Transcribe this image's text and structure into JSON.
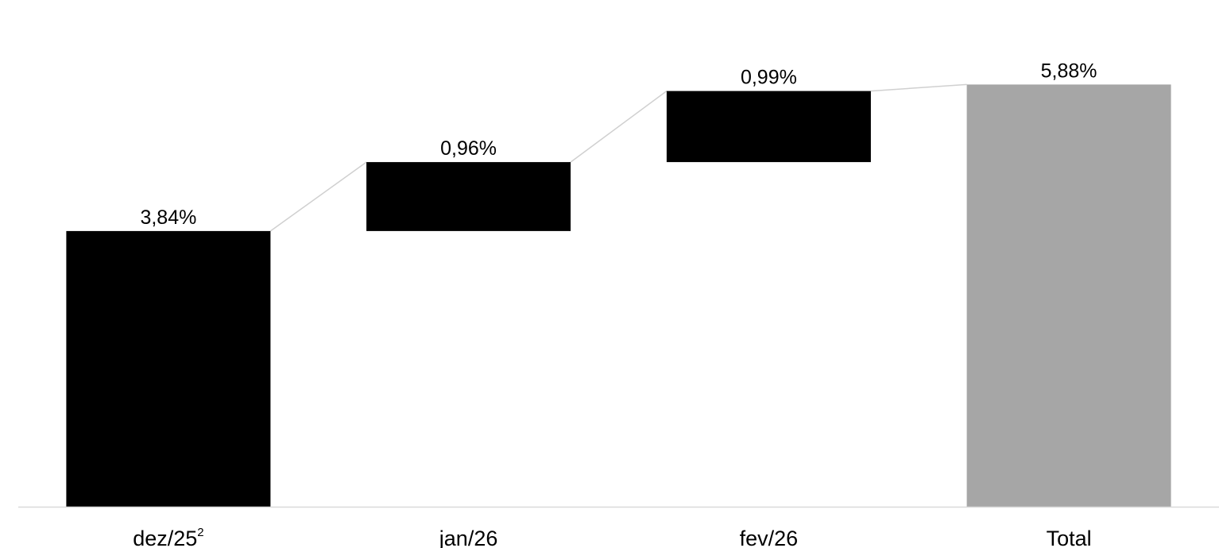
{
  "chart_data": {
    "type": "bar",
    "subtype": "waterfall",
    "title": "",
    "xlabel": "",
    "ylabel": "",
    "categories": [
      "dez/25",
      "jan/26",
      "fev/26",
      "Total"
    ],
    "category_superscripts": [
      "2",
      "",
      "",
      ""
    ],
    "values": [
      3.84,
      0.96,
      0.99,
      5.88
    ],
    "data_labels": [
      "3,84%",
      "0,96%",
      "0,99%",
      "5,88%"
    ],
    "is_total": [
      false,
      false,
      false,
      true
    ],
    "ylim": [
      0,
      6.5
    ],
    "grid": false,
    "legend": "none",
    "colors": {
      "increase": "#000000",
      "total": "#a6a6a6",
      "connector": "#d0d0d0",
      "axis": "#d9d9d9",
      "text": "#000000"
    }
  }
}
